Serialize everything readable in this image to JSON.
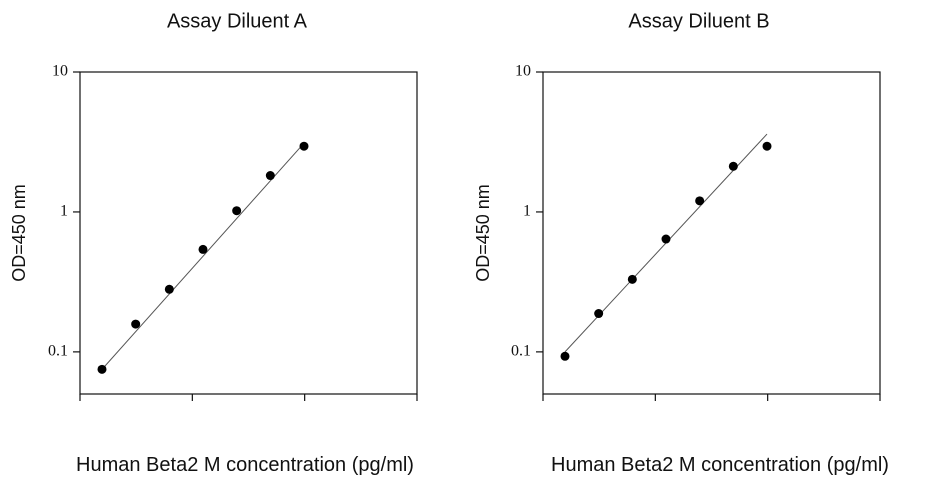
{
  "chart_data": [
    {
      "type": "scatter",
      "title": "Assay Diluent A",
      "xlabel": "Human Beta2 M concentration (pg/ml)",
      "ylabel": "OD=450 nm",
      "yscale": "log",
      "ylim": [
        0.05,
        10
      ],
      "yticks": [
        0.1,
        1,
        10
      ],
      "yticklabels": [
        "0.1",
        "1",
        "10"
      ],
      "xticks_count": 4,
      "grid": false,
      "legend": "none",
      "series": [
        {
          "points": [
            {
              "x": 1,
              "y": 0.075
            },
            {
              "x": 2,
              "y": 0.158
            },
            {
              "x": 3,
              "y": 0.28
            },
            {
              "x": 4,
              "y": 0.54
            },
            {
              "x": 5,
              "y": 1.02
            },
            {
              "x": 6,
              "y": 1.82
            },
            {
              "x": 7,
              "y": 2.95
            }
          ],
          "fit": {
            "x": [
              1,
              7
            ],
            "y": [
              0.075,
              3.1
            ]
          }
        }
      ]
    },
    {
      "type": "scatter",
      "title": "Assay Diluent B",
      "xlabel": "Human Beta2 M concentration (pg/ml)",
      "ylabel": "OD=450 nm",
      "yscale": "log",
      "ylim": [
        0.05,
        10
      ],
      "yticks": [
        0.1,
        1,
        10
      ],
      "yticklabels": [
        "0.1",
        "1",
        "10"
      ],
      "xticks_count": 4,
      "grid": false,
      "legend": "none",
      "series": [
        {
          "points": [
            {
              "x": 1,
              "y": 0.093
            },
            {
              "x": 2,
              "y": 0.188
            },
            {
              "x": 3,
              "y": 0.33
            },
            {
              "x": 4,
              "y": 0.64
            },
            {
              "x": 5,
              "y": 1.2
            },
            {
              "x": 6,
              "y": 2.12
            },
            {
              "x": 7,
              "y": 2.95
            }
          ],
          "fit": {
            "x": [
              1,
              7
            ],
            "y": [
              0.1,
              3.6
            ]
          }
        }
      ]
    }
  ]
}
